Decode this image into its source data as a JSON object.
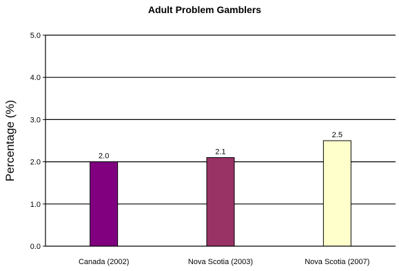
{
  "chart_data": {
    "type": "bar",
    "title": "Adult Problem Gamblers",
    "xlabel": "",
    "ylabel": "Percentage  (%)",
    "ylim": [
      0,
      5
    ],
    "yticks": [
      0,
      1,
      2,
      3,
      4,
      5
    ],
    "ytick_labels": [
      "0.0",
      "1.0",
      "2.0",
      "3.0",
      "4.0",
      "5.0"
    ],
    "grid": true,
    "categories": [
      "Canada (2002)",
      "Nova Scotia (2003)",
      "Nova Scotia (2007)"
    ],
    "values": [
      2.0,
      2.1,
      2.5
    ],
    "value_labels": [
      "2.0",
      "2.1",
      "2.5"
    ],
    "colors": [
      "#800080",
      "#993366",
      "#FFFFCC"
    ],
    "bar_edge_color": "#000000"
  }
}
